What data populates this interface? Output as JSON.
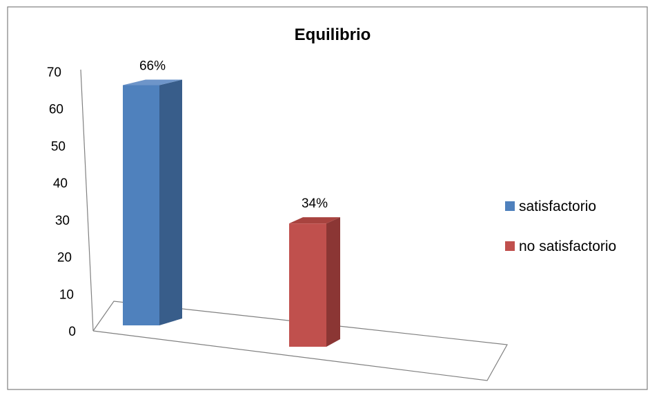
{
  "chart_data": {
    "type": "bar",
    "title": "Equilibrio",
    "categories": [
      "satisfactorio",
      "no  satisfactorio"
    ],
    "values": [
      66,
      34
    ],
    "data_labels": [
      "66%",
      "34%"
    ],
    "ylim": [
      0,
      70
    ],
    "yticks": [
      "0",
      "10",
      "20",
      "30",
      "40",
      "50",
      "60",
      "70"
    ],
    "legend_position": "right",
    "grid": false,
    "colors": {
      "satisfactorio": {
        "front": "#4F81BD",
        "side": "#385D8A",
        "top": "#6E95C9"
      },
      "no  satisfactorio": {
        "front": "#C0504D",
        "side": "#8B3634",
        "top": "#A8433F"
      }
    },
    "legend": [
      {
        "label": "satisfactorio",
        "color": "#4F81BD"
      },
      {
        "label": "no  satisfactorio",
        "color": "#C0504D"
      }
    ]
  }
}
